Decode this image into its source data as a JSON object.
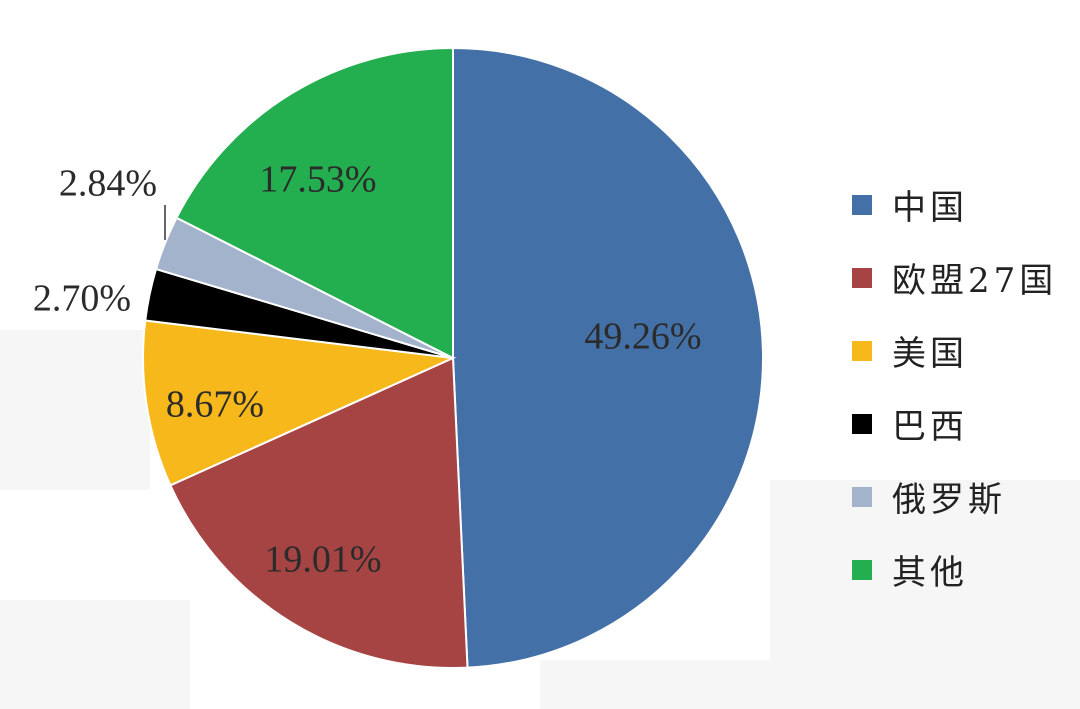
{
  "chart_data": {
    "type": "pie",
    "categories": [
      "中国",
      "欧盟27国",
      "美国",
      "巴西",
      "俄罗斯",
      "其他"
    ],
    "values": [
      49.26,
      19.01,
      8.67,
      2.7,
      2.84,
      17.53
    ],
    "labels": [
      "49.26%",
      "19.01%",
      "8.67%",
      "2.70%",
      "2.84%",
      "17.53%"
    ],
    "colors": [
      "#4470a8",
      "#a54442",
      "#f7b81c",
      "#000000",
      "#a3b3cb",
      "#23ae4f"
    ],
    "start": "12 o'clock",
    "direction": "clockwise",
    "legend_position": "right"
  }
}
